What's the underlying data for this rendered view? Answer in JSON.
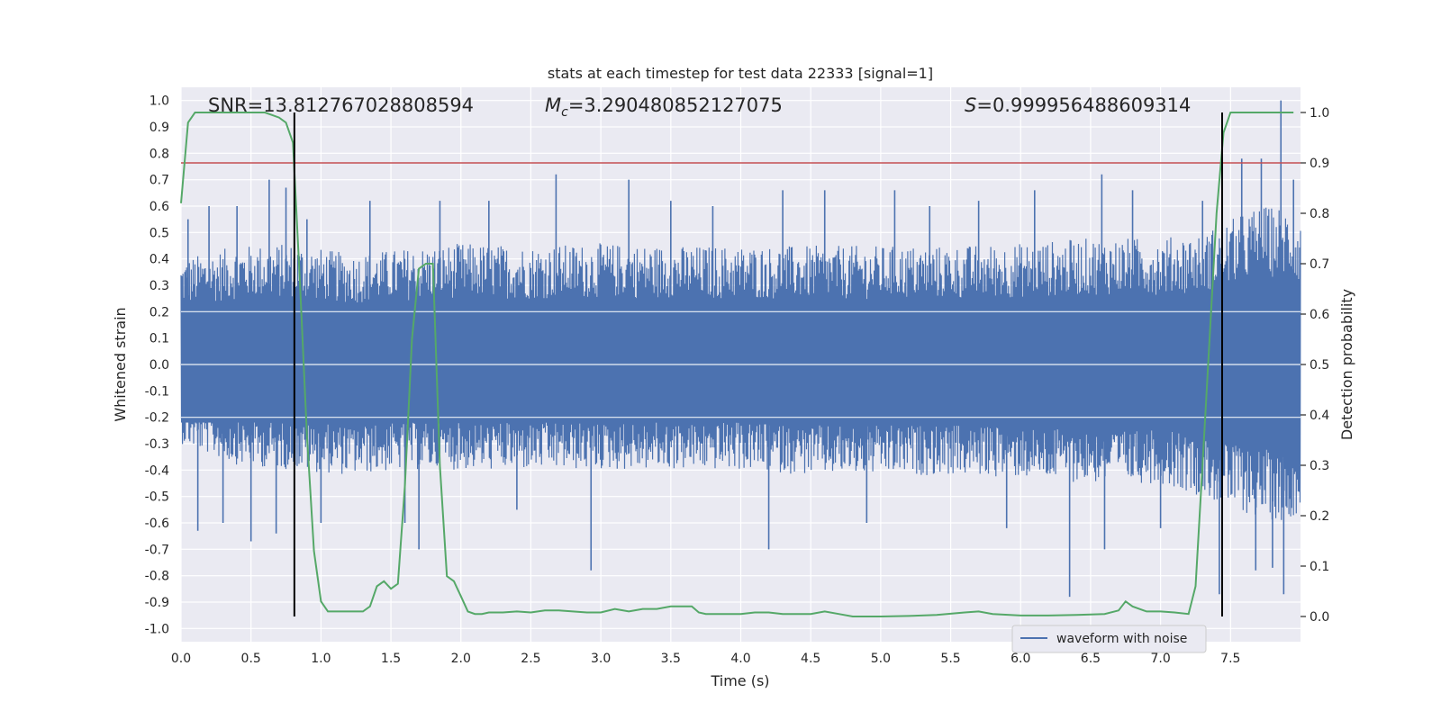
{
  "chart_data": {
    "type": "line",
    "title": "stats at each timestep for test data 22333 [signal=1]",
    "xlabel": "Time (s)",
    "ylabel": "Whitened strain",
    "y2label": "Detection probability",
    "xlim": [
      0.0,
      8.0
    ],
    "ylim": [
      -1.05,
      1.05
    ],
    "y2lim": [
      -0.05,
      1.05
    ],
    "xticks": [
      "0.0",
      "0.5",
      "1.0",
      "1.5",
      "2.0",
      "2.5",
      "3.0",
      "3.5",
      "4.0",
      "4.5",
      "5.0",
      "5.5",
      "6.0",
      "6.5",
      "7.0",
      "7.5"
    ],
    "yticks": [
      "1.0",
      "0.9",
      "0.8",
      "0.7",
      "0.6",
      "0.5",
      "0.4",
      "0.3",
      "0.2",
      "0.1",
      "0.0",
      "-0.1",
      "-0.2",
      "-0.3",
      "-0.4",
      "-0.5",
      "-0.6",
      "-0.7",
      "-0.8",
      "-0.9",
      "-1.0"
    ],
    "y2ticks": [
      "1.0",
      "0.9",
      "0.8",
      "0.7",
      "0.6",
      "0.5",
      "0.4",
      "0.3",
      "0.2",
      "0.1",
      "0.0"
    ],
    "grid": true,
    "annotations": {
      "snr": "SNR=13.812767028808594",
      "mc_symbol": "M",
      "mc_sub": "c",
      "mc_value": "=3.290480852127075",
      "s_symbol": "S",
      "s_value": "=0.999956488609314"
    },
    "threshold_y2": 0.9,
    "vertical_lines_x": [
      0.81,
      7.44
    ],
    "legend": {
      "label": "waveform with noise",
      "position": "lower-right"
    },
    "colors": {
      "waveform": "#4c72b0",
      "probability": "#55a868",
      "threshold": "#c44e52",
      "markers": "#000000",
      "background": "#eaeaf2"
    },
    "series": [
      {
        "name": "waveform with noise",
        "axis": "left",
        "envelope": {
          "x": [
            0.0,
            0.4,
            0.8,
            1.2,
            1.6,
            2.0,
            2.5,
            3.0,
            3.5,
            4.0,
            4.5,
            5.0,
            5.5,
            6.0,
            6.5,
            7.0,
            7.3,
            7.5,
            7.7,
            7.9,
            8.0
          ],
          "top": [
            0.4,
            0.45,
            0.46,
            0.42,
            0.44,
            0.46,
            0.45,
            0.46,
            0.45,
            0.45,
            0.45,
            0.45,
            0.45,
            0.46,
            0.48,
            0.48,
            0.5,
            0.55,
            0.6,
            0.6,
            0.55
          ],
          "bottom": [
            -0.3,
            -0.38,
            -0.4,
            -0.42,
            -0.4,
            -0.4,
            -0.4,
            -0.4,
            -0.4,
            -0.4,
            -0.42,
            -0.42,
            -0.42,
            -0.43,
            -0.45,
            -0.45,
            -0.5,
            -0.55,
            -0.58,
            -0.6,
            -0.55
          ]
        },
        "spikes": [
          {
            "x": 0.05,
            "y": 0.55
          },
          {
            "x": 0.12,
            "y": -0.63
          },
          {
            "x": 0.2,
            "y": 0.6
          },
          {
            "x": 0.3,
            "y": -0.6
          },
          {
            "x": 0.4,
            "y": 0.6
          },
          {
            "x": 0.5,
            "y": -0.67
          },
          {
            "x": 0.63,
            "y": 0.7
          },
          {
            "x": 0.68,
            "y": -0.64
          },
          {
            "x": 0.75,
            "y": 0.67
          },
          {
            "x": 0.9,
            "y": 0.55
          },
          {
            "x": 1.0,
            "y": -0.6
          },
          {
            "x": 1.35,
            "y": 0.62
          },
          {
            "x": 1.6,
            "y": -0.6
          },
          {
            "x": 1.7,
            "y": -0.7
          },
          {
            "x": 1.85,
            "y": 0.62
          },
          {
            "x": 2.2,
            "y": 0.62
          },
          {
            "x": 2.4,
            "y": -0.55
          },
          {
            "x": 2.68,
            "y": 0.72
          },
          {
            "x": 2.93,
            "y": -0.78
          },
          {
            "x": 3.2,
            "y": 0.7
          },
          {
            "x": 3.5,
            "y": 0.62
          },
          {
            "x": 3.8,
            "y": 0.6
          },
          {
            "x": 4.2,
            "y": -0.7
          },
          {
            "x": 4.3,
            "y": 0.66
          },
          {
            "x": 4.6,
            "y": 0.66
          },
          {
            "x": 4.9,
            "y": -0.6
          },
          {
            "x": 5.1,
            "y": 0.66
          },
          {
            "x": 5.35,
            "y": 0.6
          },
          {
            "x": 5.7,
            "y": 0.62
          },
          {
            "x": 5.9,
            "y": -0.62
          },
          {
            "x": 6.1,
            "y": 0.66
          },
          {
            "x": 6.35,
            "y": -0.88
          },
          {
            "x": 6.58,
            "y": 0.72
          },
          {
            "x": 6.6,
            "y": -0.7
          },
          {
            "x": 6.8,
            "y": 0.66
          },
          {
            "x": 7.0,
            "y": -0.62
          },
          {
            "x": 7.3,
            "y": 0.62
          },
          {
            "x": 7.42,
            "y": -0.87
          },
          {
            "x": 7.58,
            "y": 0.78
          },
          {
            "x": 7.68,
            "y": -0.78
          },
          {
            "x": 7.72,
            "y": 0.78
          },
          {
            "x": 7.8,
            "y": -0.77
          },
          {
            "x": 7.86,
            "y": 1.0
          },
          {
            "x": 7.88,
            "y": -0.87
          },
          {
            "x": 7.95,
            "y": 0.7
          }
        ]
      },
      {
        "name": "",
        "axis": "right",
        "x": [
          0.0,
          0.05,
          0.1,
          0.2,
          0.3,
          0.4,
          0.5,
          0.6,
          0.7,
          0.75,
          0.8,
          0.85,
          0.9,
          0.95,
          1.0,
          1.05,
          1.1,
          1.2,
          1.3,
          1.35,
          1.4,
          1.45,
          1.5,
          1.55,
          1.6,
          1.65,
          1.7,
          1.75,
          1.8,
          1.85,
          1.9,
          1.95,
          2.0,
          2.05,
          2.1,
          2.15,
          2.2,
          2.3,
          2.4,
          2.5,
          2.6,
          2.7,
          2.8,
          2.9,
          3.0,
          3.1,
          3.2,
          3.3,
          3.4,
          3.5,
          3.6,
          3.65,
          3.7,
          3.75,
          3.8,
          3.9,
          4.0,
          4.1,
          4.2,
          4.3,
          4.4,
          4.5,
          4.6,
          4.7,
          4.8,
          4.9,
          5.0,
          5.2,
          5.4,
          5.6,
          5.7,
          5.8,
          6.0,
          6.2,
          6.4,
          6.6,
          6.7,
          6.75,
          6.8,
          6.9,
          7.0,
          7.1,
          7.2,
          7.25,
          7.3,
          7.35,
          7.4,
          7.45,
          7.5,
          7.55,
          7.6,
          7.7,
          7.8,
          7.9,
          7.95
        ],
        "values": [
          0.82,
          0.98,
          1.0,
          1.0,
          1.0,
          1.0,
          1.0,
          1.0,
          0.99,
          0.98,
          0.94,
          0.66,
          0.36,
          0.13,
          0.03,
          0.01,
          0.01,
          0.01,
          0.01,
          0.02,
          0.06,
          0.07,
          0.055,
          0.065,
          0.26,
          0.55,
          0.69,
          0.7,
          0.7,
          0.3,
          0.08,
          0.07,
          0.04,
          0.01,
          0.005,
          0.005,
          0.008,
          0.008,
          0.01,
          0.008,
          0.012,
          0.012,
          0.01,
          0.008,
          0.008,
          0.015,
          0.01,
          0.015,
          0.015,
          0.02,
          0.02,
          0.02,
          0.008,
          0.005,
          0.005,
          0.005,
          0.005,
          0.008,
          0.008,
          0.005,
          0.005,
          0.005,
          0.01,
          0.005,
          0.0,
          0.0,
          0.0,
          0.001,
          0.003,
          0.008,
          0.01,
          0.005,
          0.002,
          0.002,
          0.003,
          0.005,
          0.012,
          0.03,
          0.02,
          0.01,
          0.01,
          0.008,
          0.005,
          0.06,
          0.3,
          0.55,
          0.8,
          0.96,
          1.0,
          1.0,
          1.0,
          1.0,
          1.0,
          1.0,
          1.0
        ]
      }
    ]
  }
}
